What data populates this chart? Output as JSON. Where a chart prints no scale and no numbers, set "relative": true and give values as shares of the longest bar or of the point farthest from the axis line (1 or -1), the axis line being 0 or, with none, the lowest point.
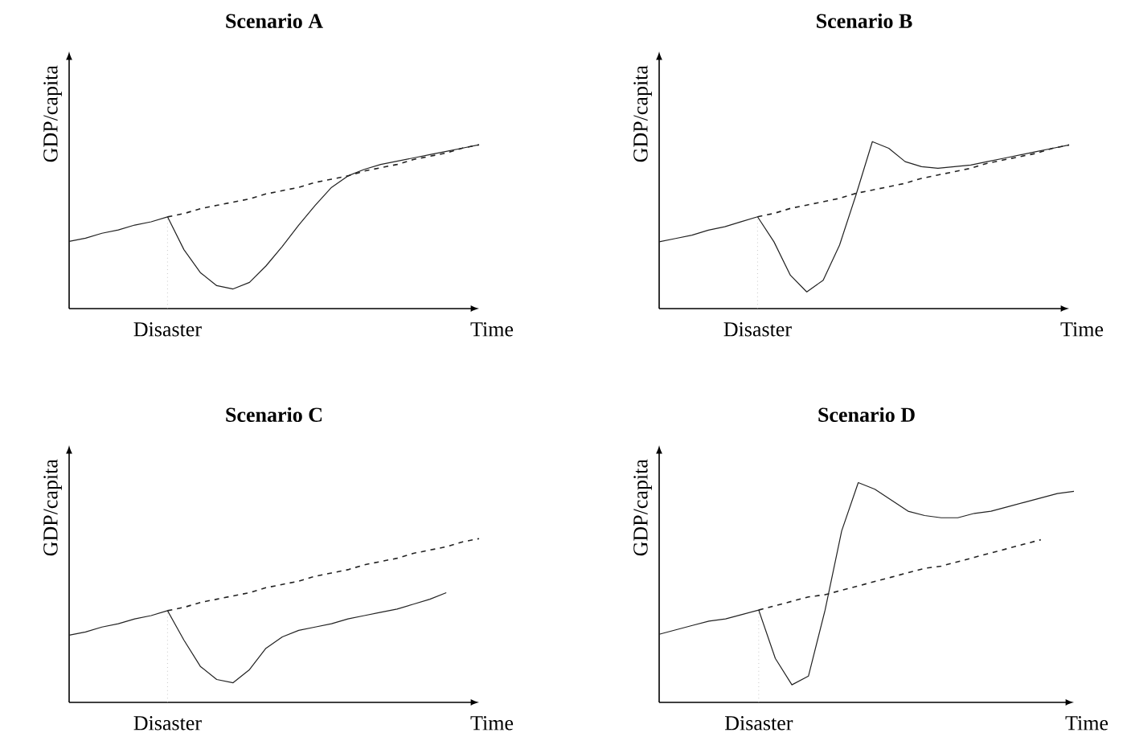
{
  "chart_data": [
    {
      "type": "line",
      "title": "Scenario A",
      "xlabel": "Time",
      "ylabel": "GDP/capita",
      "relative": true,
      "annotations": [
        "Disaster"
      ],
      "categories": [
        null,
        null,
        null,
        null,
        null,
        null,
        null,
        null,
        null,
        null,
        null,
        null,
        null,
        null,
        null,
        null,
        null,
        null,
        null,
        null,
        null,
        null,
        null,
        null,
        null,
        null
      ],
      "series": [
        {
          "color": "#222222",
          "line_style": "solid",
          "values": [
            0.41,
            0.43,
            0.46,
            0.48,
            0.51,
            0.53,
            0.56,
            0.36,
            0.22,
            0.14,
            0.12,
            0.16,
            0.26,
            0.38,
            0.51,
            0.63,
            0.74,
            0.81,
            0.85,
            0.88,
            0.9,
            0.92,
            0.94,
            0.96,
            0.98,
            1.0
          ]
        },
        {
          "color": "#222222",
          "line_style": "dashed",
          "values": [
            null,
            null,
            null,
            null,
            null,
            null,
            0.56,
            0.58,
            0.61,
            0.63,
            0.65,
            0.67,
            0.7,
            0.72,
            0.74,
            0.77,
            0.79,
            0.81,
            0.84,
            0.86,
            0.88,
            0.91,
            0.93,
            0.95,
            0.98,
            1.0
          ]
        }
      ]
    },
    {
      "type": "line",
      "title": "Scenario B",
      "xlabel": "Time",
      "ylabel": "GDP/capita",
      "relative": true,
      "annotations": [
        "Disaster"
      ],
      "categories": [
        null,
        null,
        null,
        null,
        null,
        null,
        null,
        null,
        null,
        null,
        null,
        null,
        null,
        null,
        null,
        null,
        null,
        null,
        null,
        null,
        null,
        null,
        null,
        null,
        null,
        null
      ],
      "series": [
        {
          "color": "#222222",
          "line_style": "solid",
          "values": [
            0.4,
            0.42,
            0.44,
            0.47,
            0.49,
            0.52,
            0.55,
            0.4,
            0.2,
            0.1,
            0.17,
            0.38,
            0.68,
            1.0,
            0.96,
            0.88,
            0.85,
            0.84,
            0.85,
            0.86,
            0.88,
            0.9,
            0.92,
            0.94,
            0.96,
            0.98
          ]
        },
        {
          "color": "#222222",
          "line_style": "dashed",
          "values": [
            null,
            null,
            null,
            null,
            null,
            null,
            0.55,
            0.57,
            0.6,
            0.62,
            0.64,
            0.66,
            0.69,
            0.71,
            0.73,
            0.75,
            0.78,
            0.8,
            0.82,
            0.84,
            0.87,
            0.89,
            0.91,
            0.93,
            0.96,
            0.98
          ]
        }
      ]
    },
    {
      "type": "line",
      "title": "Scenario C",
      "xlabel": "Time",
      "ylabel": "GDP/capita",
      "relative": true,
      "annotations": [
        "Disaster"
      ],
      "categories": [
        null,
        null,
        null,
        null,
        null,
        null,
        null,
        null,
        null,
        null,
        null,
        null,
        null,
        null,
        null,
        null,
        null,
        null,
        null,
        null,
        null,
        null,
        null,
        null,
        null,
        null
      ],
      "series": [
        {
          "color": "#222222",
          "line_style": "solid",
          "values": [
            0.41,
            0.43,
            0.46,
            0.48,
            0.51,
            0.53,
            0.56,
            0.38,
            0.22,
            0.14,
            0.12,
            0.2,
            0.33,
            0.4,
            0.44,
            0.46,
            0.48,
            0.51,
            0.53,
            0.55,
            0.57,
            0.6,
            0.63,
            0.67,
            null,
            null
          ]
        },
        {
          "color": "#222222",
          "line_style": "dashed",
          "values": [
            null,
            null,
            null,
            null,
            null,
            null,
            0.56,
            0.58,
            0.61,
            0.63,
            0.65,
            0.67,
            0.7,
            0.72,
            0.74,
            0.77,
            0.79,
            0.81,
            0.84,
            0.86,
            0.88,
            0.91,
            0.93,
            0.95,
            0.98,
            1.0
          ]
        }
      ]
    },
    {
      "type": "line",
      "title": "Scenario D",
      "xlabel": "Time",
      "ylabel": "GDP/capita",
      "relative": true,
      "annotations": [
        "Disaster"
      ],
      "categories": [
        null,
        null,
        null,
        null,
        null,
        null,
        null,
        null,
        null,
        null,
        null,
        null,
        null,
        null,
        null,
        null,
        null,
        null,
        null,
        null,
        null,
        null,
        null,
        null,
        null,
        null
      ],
      "series": [
        {
          "color": "#222222",
          "line_style": "solid",
          "values": [
            0.31,
            0.33,
            0.35,
            0.37,
            0.38,
            0.4,
            0.42,
            0.2,
            0.08,
            0.12,
            0.42,
            0.78,
            1.0,
            0.97,
            0.92,
            0.87,
            0.85,
            0.84,
            0.84,
            0.86,
            0.87,
            0.89,
            0.91,
            0.93,
            0.95,
            0.96
          ]
        },
        {
          "color": "#222222",
          "line_style": "dashed",
          "values": [
            null,
            null,
            null,
            null,
            null,
            null,
            0.42,
            0.44,
            0.46,
            0.48,
            0.49,
            0.51,
            0.53,
            0.55,
            0.57,
            0.59,
            0.61,
            0.62,
            0.64,
            0.66,
            0.68,
            0.7,
            0.72,
            0.74,
            null,
            null
          ]
        }
      ]
    }
  ]
}
